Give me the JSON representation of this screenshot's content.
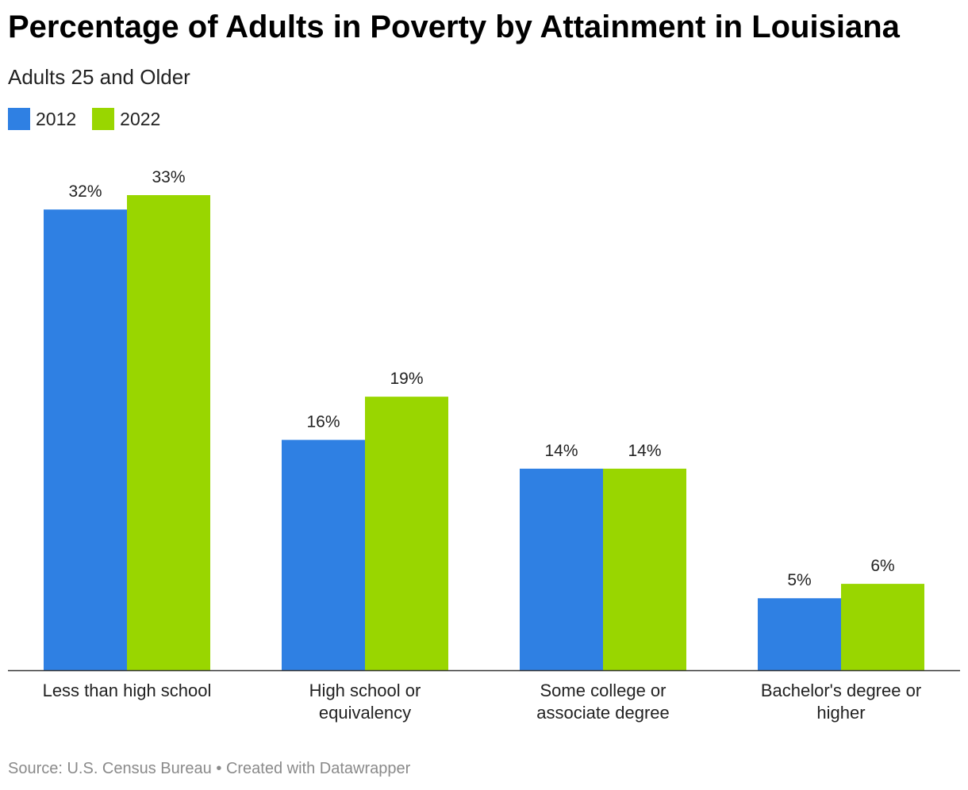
{
  "title": "Percentage of Adults in Poverty by Attainment in Louisiana",
  "subtitle": "Adults 25 and Older",
  "footer": {
    "source": "Source: U.S. Census Bureau",
    "separator": "•",
    "credit": "Created with Datawrapper"
  },
  "chart_data": {
    "type": "bar",
    "title": "Percentage of Adults in Poverty by Attainment in Louisiana",
    "subtitle": "Adults 25 and Older",
    "categories": [
      [
        "Less than high school"
      ],
      [
        "High school or",
        "equivalency"
      ],
      [
        "Some college or",
        "associate degree"
      ],
      [
        "Bachelor's degree or",
        "higher"
      ]
    ],
    "series": [
      {
        "name": "2012",
        "color": "#2f80e3",
        "values": [
          32,
          16,
          14,
          5
        ],
        "labels": [
          "32%",
          "16%",
          "14%",
          "5%"
        ]
      },
      {
        "name": "2022",
        "color": "#99d600",
        "values": [
          33,
          19,
          14,
          6
        ],
        "labels": [
          "33%",
          "19%",
          "14%",
          "6%"
        ]
      }
    ],
    "ylim": [
      0,
      33
    ],
    "grid": false,
    "legend": "top-left",
    "value_suffix": "%"
  }
}
